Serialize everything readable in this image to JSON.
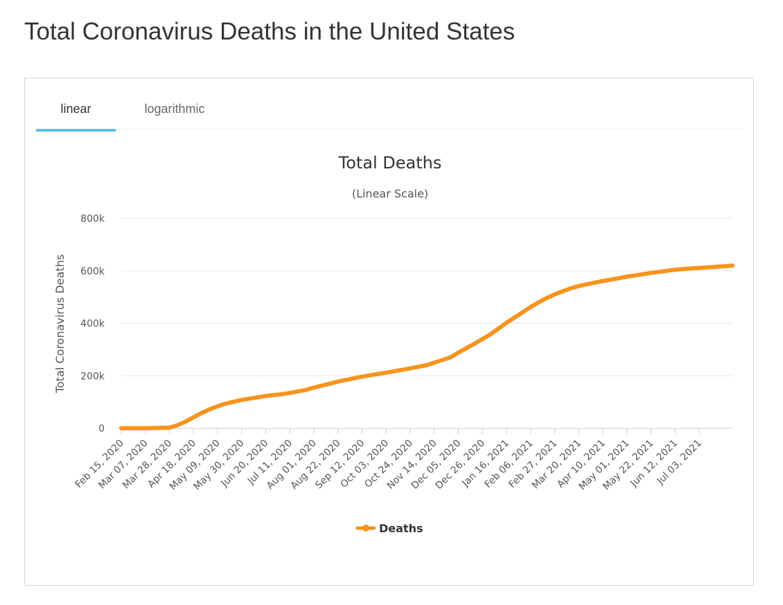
{
  "page": {
    "title": "Total Coronavirus Deaths in the United States"
  },
  "tabs": [
    {
      "label": "linear",
      "active": true
    },
    {
      "label": "logarithmic",
      "active": false
    }
  ],
  "colors": {
    "series": "#f7941e",
    "tab_accent": "#5bc0eb",
    "gridline": "#e6e6e6"
  },
  "chart_data": {
    "type": "line",
    "title": "Total Deaths",
    "subtitle": "(Linear Scale)",
    "ylabel": "Total Coronavirus Deaths",
    "xlabel": "",
    "ylim": [
      0,
      800000
    ],
    "yticks": [
      {
        "value": 0,
        "label": "0"
      },
      {
        "value": 200000,
        "label": "200k"
      },
      {
        "value": 400000,
        "label": "400k"
      },
      {
        "value": 600000,
        "label": "600k"
      },
      {
        "value": 800000,
        "label": "800k"
      }
    ],
    "x_start": "Feb 15, 2020",
    "x_end": "Aug 01, 2021",
    "xtick_labels": [
      "Feb 15, 2020",
      "Mar 07, 2020",
      "Mar 28, 2020",
      "Apr 18, 2020",
      "May 09, 2020",
      "May 30, 2020",
      "Jun 20, 2020",
      "Jul 11, 2020",
      "Aug 01, 2020",
      "Aug 22, 2020",
      "Sep 12, 2020",
      "Oct 03, 2020",
      "Oct 24, 2020",
      "Nov 14, 2020",
      "Dec 05, 2020",
      "Dec 26, 2020",
      "Jan 16, 2021",
      "Feb 06, 2021",
      "Feb 27, 2021",
      "Mar 20, 2021",
      "Apr 10, 2021",
      "May 01, 2021",
      "May 22, 2021",
      "Jun 12, 2021",
      "Jul 03, 2021"
    ],
    "grid": true,
    "legend_position": "bottom-center",
    "series": [
      {
        "name": "Deaths",
        "points": [
          [
            "Feb 15, 2020",
            0
          ],
          [
            "Mar 07, 2020",
            50
          ],
          [
            "Mar 28, 2020",
            2500
          ],
          [
            "Apr 04, 2020",
            12000
          ],
          [
            "Apr 11, 2020",
            25000
          ],
          [
            "Apr 18, 2020",
            42000
          ],
          [
            "Apr 25, 2020",
            58000
          ],
          [
            "May 02, 2020",
            72000
          ],
          [
            "May 09, 2020",
            84000
          ],
          [
            "May 16, 2020",
            94000
          ],
          [
            "May 23, 2020",
            101000
          ],
          [
            "May 30, 2020",
            108000
          ],
          [
            "Jun 13, 2020",
            118000
          ],
          [
            "Jun 20, 2020",
            123000
          ],
          [
            "Jul 04, 2020",
            130000
          ],
          [
            "Jul 11, 2020",
            135000
          ],
          [
            "Jul 25, 2020",
            146000
          ],
          [
            "Aug 01, 2020",
            155000
          ],
          [
            "Aug 22, 2020",
            178000
          ],
          [
            "Sep 12, 2020",
            197000
          ],
          [
            "Oct 03, 2020",
            212000
          ],
          [
            "Oct 24, 2020",
            228000
          ],
          [
            "Nov 07, 2020",
            240000
          ],
          [
            "Nov 14, 2020",
            250000
          ],
          [
            "Nov 28, 2020",
            270000
          ],
          [
            "Dec 05, 2020",
            288000
          ],
          [
            "Dec 12, 2020",
            305000
          ],
          [
            "Dec 19, 2020",
            322000
          ],
          [
            "Dec 26, 2020",
            340000
          ],
          [
            "Jan 02, 2021",
            358000
          ],
          [
            "Jan 09, 2021",
            380000
          ],
          [
            "Jan 16, 2021",
            402000
          ],
          [
            "Jan 23, 2021",
            422000
          ],
          [
            "Jan 30, 2021",
            442000
          ],
          [
            "Feb 06, 2021",
            462000
          ],
          [
            "Feb 13, 2021",
            480000
          ],
          [
            "Feb 20, 2021",
            496000
          ],
          [
            "Feb 27, 2021",
            510000
          ],
          [
            "Mar 06, 2021",
            522000
          ],
          [
            "Mar 13, 2021",
            533000
          ],
          [
            "Mar 20, 2021",
            542000
          ],
          [
            "Apr 03, 2021",
            555000
          ],
          [
            "Apr 10, 2021",
            561000
          ],
          [
            "Apr 24, 2021",
            572000
          ],
          [
            "May 01, 2021",
            578000
          ],
          [
            "May 15, 2021",
            587000
          ],
          [
            "May 22, 2021",
            592000
          ],
          [
            "Jun 05, 2021",
            600000
          ],
          [
            "Jun 12, 2021",
            604000
          ],
          [
            "Jun 26, 2021",
            609000
          ],
          [
            "Jul 03, 2021",
            611000
          ],
          [
            "Jul 17, 2021",
            615000
          ],
          [
            "Aug 01, 2021",
            620000
          ]
        ]
      }
    ]
  }
}
